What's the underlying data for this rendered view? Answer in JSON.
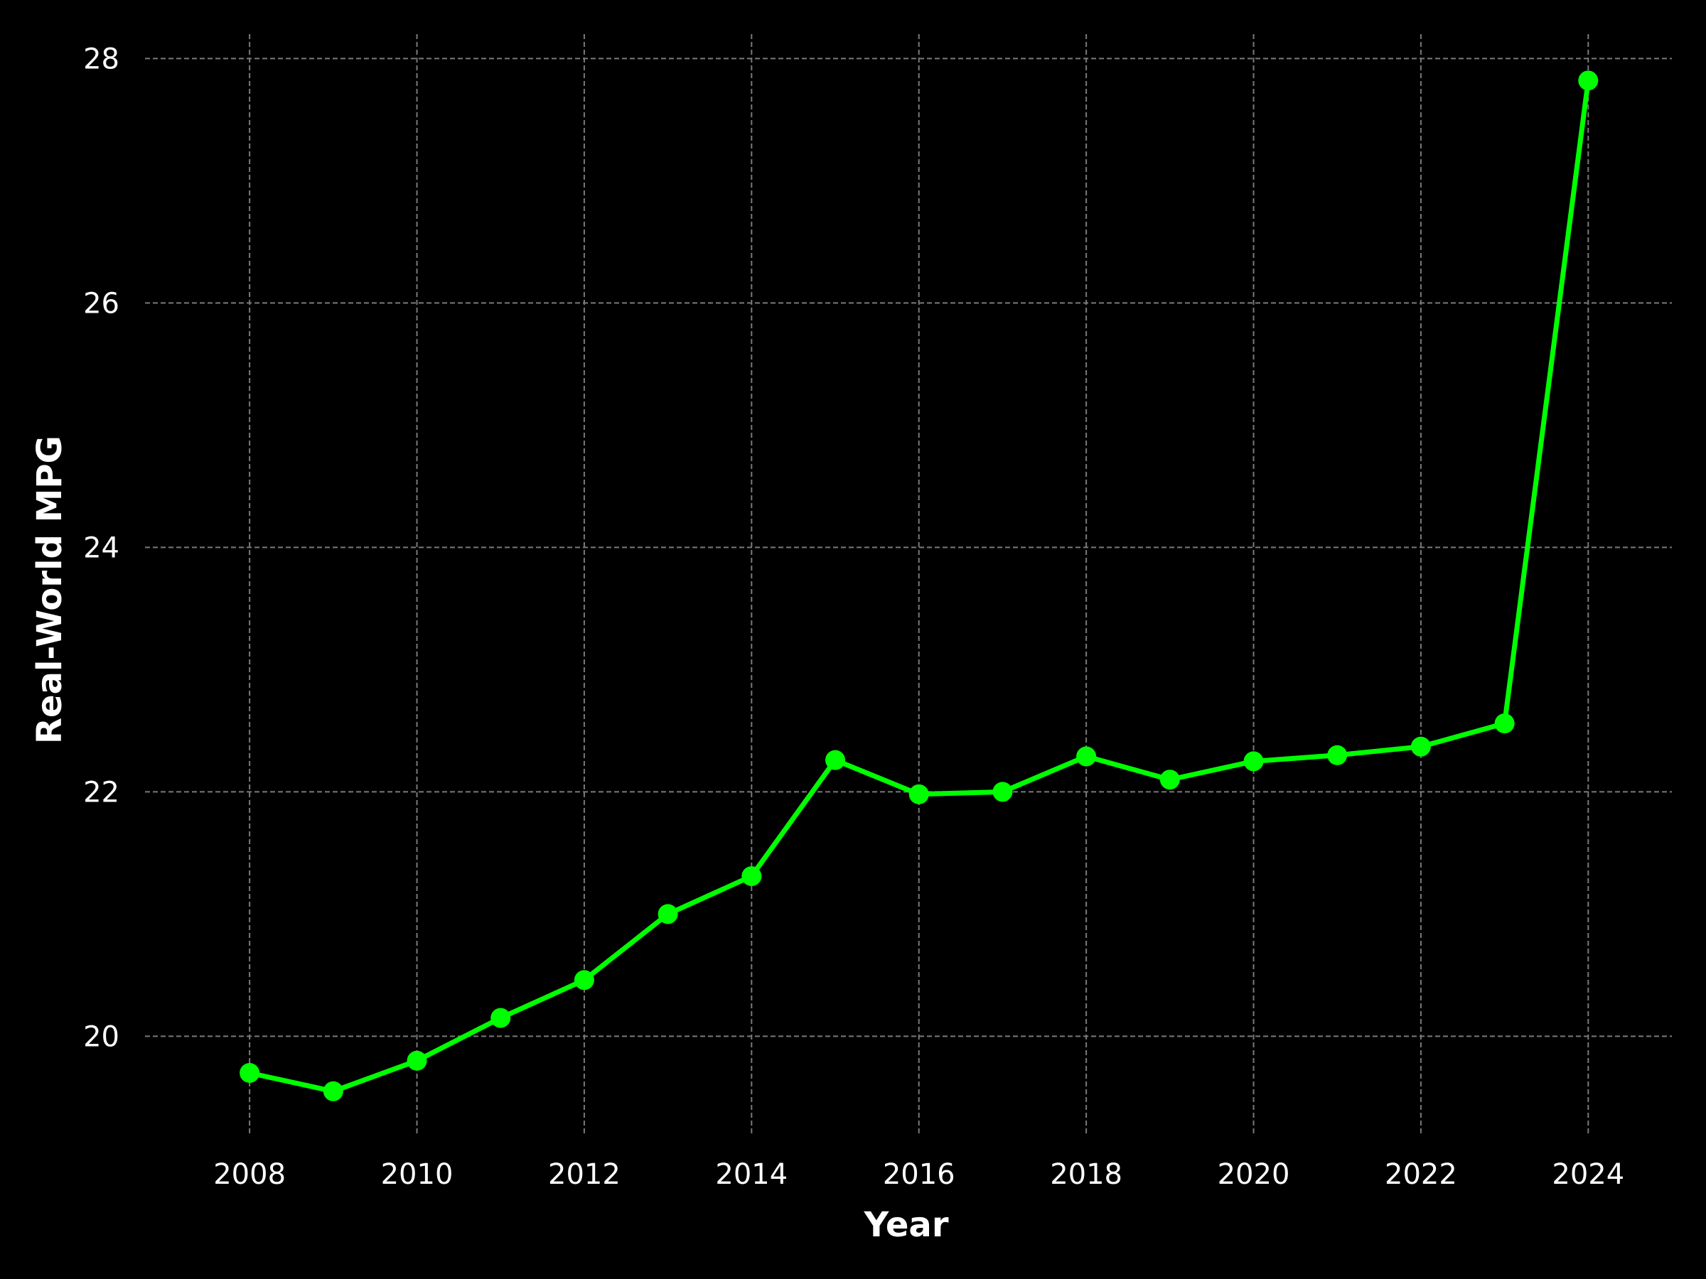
{
  "chart_data": {
    "type": "line",
    "title": "",
    "xlabel": "Year",
    "ylabel": "Real-World MPG",
    "x": [
      2008,
      2009,
      2010,
      2011,
      2012,
      2013,
      2014,
      2015,
      2016,
      2017,
      2018,
      2019,
      2020,
      2021,
      2022,
      2023,
      2024
    ],
    "series": [
      {
        "values": [
          19.7,
          19.55,
          19.8,
          20.15,
          20.46,
          21.0,
          21.31,
          22.26,
          21.98,
          22.0,
          22.29,
          22.1,
          22.25,
          22.3,
          22.37,
          22.56,
          27.82
        ],
        "color": "#00ff00"
      }
    ],
    "xlim": [
      2006.75,
      2025.0
    ],
    "ylim": [
      19.2,
      28.2
    ],
    "x_ticks": [
      "2008",
      "2010",
      "2012",
      "2014",
      "2016",
      "2018",
      "2020",
      "2022",
      "2024"
    ],
    "y_ticks": [
      "20",
      "22",
      "24",
      "26",
      "28"
    ],
    "grid": true,
    "legend": "none",
    "background": "#000000"
  }
}
